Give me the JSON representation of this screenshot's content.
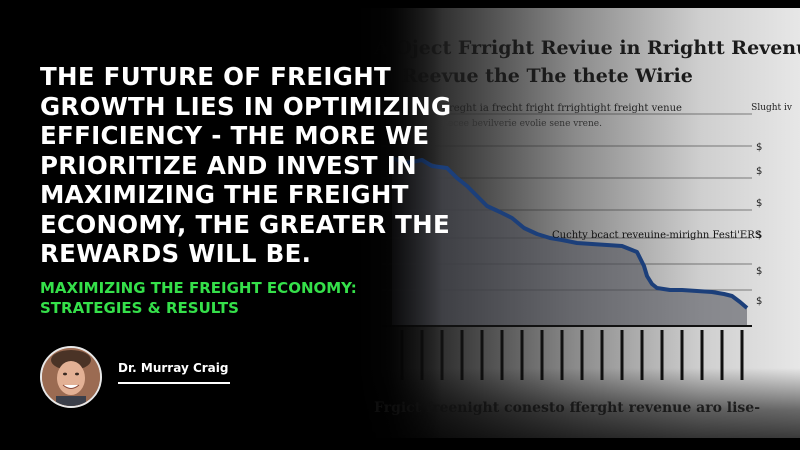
{
  "quote": {
    "text": "The future of freight growth lies in optimizing efficiency - the more we prioritize and invest in maximizing the freight economy, the greater the rewards will be."
  },
  "subtitle": {
    "line1": "Maximizing the Freight Economy:",
    "line2": "Strategies & Results"
  },
  "author": {
    "name": "Dr. Murray Craig"
  },
  "background_image": {
    "title_line1": "A Oject Frright Reviue in Rrightt Revenue",
    "title_line2": "in Reevue the The thete Wirie",
    "subtitle": "Freght ia frecht fright frrightight freight venue",
    "subtitle2": "Lecee bevilverie evolie sene vrene.",
    "corner_label": "Slught iv",
    "annotation": "Cuchty bcact reveuine-mirighn Festi'ERS",
    "caption": "Frgict freenight conesto fferght revenue aro lise-",
    "y_tick_label": "$",
    "trend_color": "#1c3f7a"
  },
  "colors": {
    "quote": "#ffffff",
    "accent": "#35e04a",
    "background": "#000000"
  }
}
